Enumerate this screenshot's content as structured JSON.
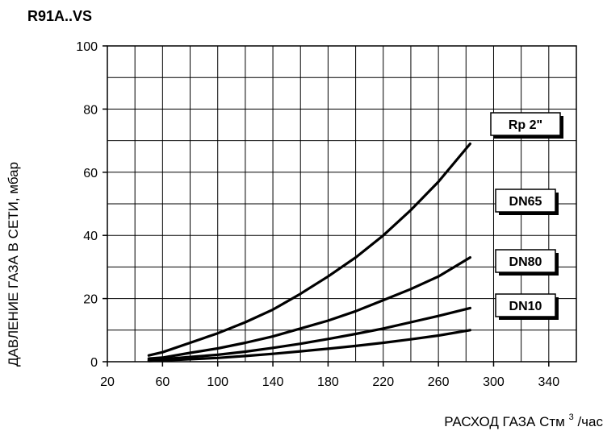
{
  "chart_data": {
    "type": "line",
    "title": "R91A..VS",
    "xlabel": {
      "main": "РАСХОД ГАЗА Стм",
      "sup": "3",
      "suffix": "/час"
    },
    "ylabel": "ДАВЛЕНИЕ ГАЗА В СЕТИ, мбар",
    "xlim": [
      20,
      360
    ],
    "ylim": [
      0,
      100
    ],
    "x_tick_labels": [
      "20",
      "60",
      "100",
      "140",
      "180",
      "220",
      "260",
      "300",
      "340"
    ],
    "x_tick_values": [
      20,
      60,
      100,
      140,
      180,
      220,
      260,
      300,
      340
    ],
    "y_tick_labels": [
      "0",
      "20",
      "40",
      "60",
      "80",
      "100"
    ],
    "y_tick_values": [
      0,
      20,
      40,
      60,
      80,
      100
    ],
    "grid": true,
    "vertical_grid_step": 20,
    "horizontal_grid_step": 10,
    "series": [
      {
        "name": "Rp 2\"",
        "x": [
          50,
          60,
          80,
          100,
          120,
          140,
          160,
          180,
          200,
          220,
          240,
          260,
          283
        ],
        "y": [
          2,
          3,
          6,
          9,
          12.5,
          16.5,
          21.5,
          27,
          33,
          40,
          48,
          57,
          69
        ]
      },
      {
        "name": "DN65",
        "x": [
          50,
          60,
          80,
          100,
          120,
          140,
          160,
          180,
          200,
          220,
          240,
          260,
          283
        ],
        "y": [
          1,
          1.3,
          2.8,
          4.2,
          6,
          8,
          10.5,
          13,
          16,
          19.5,
          23,
          27,
          33
        ]
      },
      {
        "name": "DN80",
        "x": [
          50,
          60,
          80,
          100,
          120,
          140,
          160,
          180,
          200,
          220,
          240,
          260,
          283
        ],
        "y": [
          0.5,
          0.8,
          1.5,
          2.2,
          3.2,
          4.4,
          5.7,
          7.2,
          8.8,
          10.5,
          12.5,
          14.5,
          17
        ]
      },
      {
        "name": "DN10",
        "x": [
          50,
          60,
          80,
          100,
          120,
          140,
          160,
          180,
          200,
          220,
          240,
          260,
          283
        ],
        "y": [
          0.2,
          0.4,
          0.8,
          1.2,
          1.8,
          2.5,
          3.3,
          4.1,
          5,
          6,
          7.1,
          8.3,
          10
        ]
      }
    ],
    "series_color": "#000000",
    "grid_color": "#000000",
    "background_color": "#ffffff"
  }
}
